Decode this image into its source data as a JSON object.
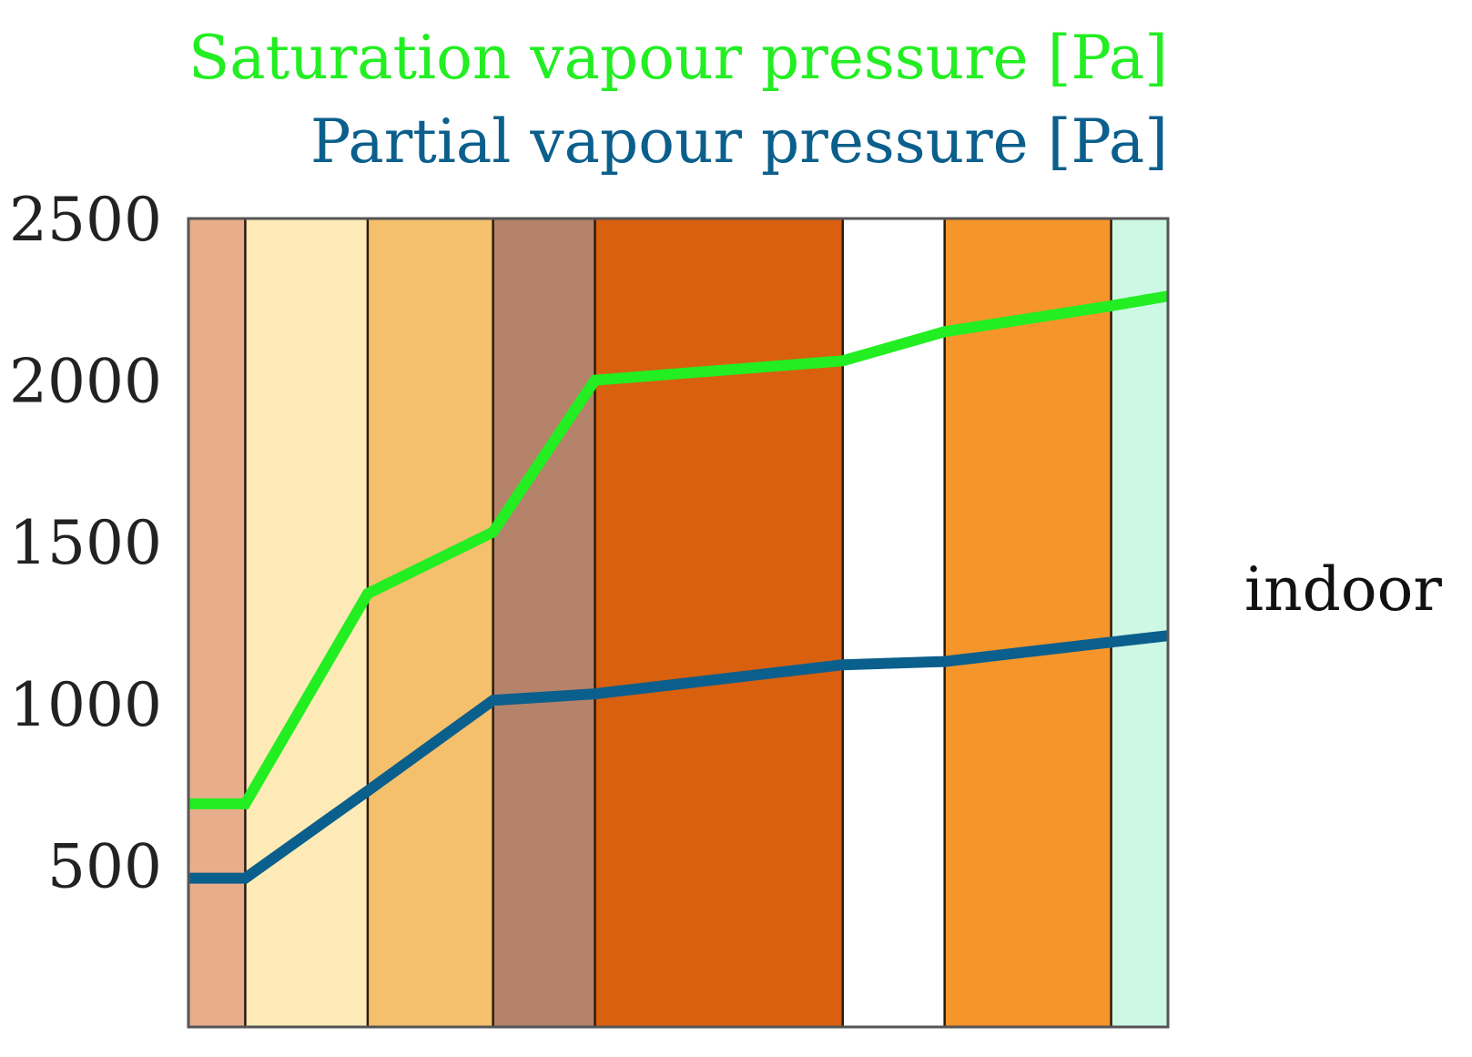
{
  "chart_data": {
    "type": "line",
    "title": "",
    "xlabel": "",
    "ylabel": "",
    "ylim": [
      0,
      2500
    ],
    "yticks": [
      500,
      1000,
      1500,
      2000,
      2500
    ],
    "grid": false,
    "side_label": "indoor",
    "layers": [
      {
        "start": 0.0,
        "end": 0.058,
        "color": "#e8ae8c"
      },
      {
        "start": 0.058,
        "end": 0.183,
        "color": "#fdeab6"
      },
      {
        "start": 0.183,
        "end": 0.311,
        "color": "#f4c06c"
      },
      {
        "start": 0.311,
        "end": 0.415,
        "color": "#b4836a"
      },
      {
        "start": 0.415,
        "end": 0.668,
        "color": "#d8600f"
      },
      {
        "start": 0.668,
        "end": 0.772,
        "color": "#ffffff"
      },
      {
        "start": 0.772,
        "end": 0.942,
        "color": "#f6952a"
      },
      {
        "start": 0.942,
        "end": 1.0,
        "color": "#cdf8e4"
      }
    ],
    "series": [
      {
        "name": "Saturation vapour pressure [Pa]",
        "color": "#22ee22",
        "x": [
          0.0,
          0.058,
          0.183,
          0.311,
          0.415,
          0.668,
          0.772,
          0.942,
          1.0
        ],
        "values": [
          690,
          690,
          1340,
          1530,
          2000,
          2060,
          2150,
          2230,
          2260
        ]
      },
      {
        "name": "Partial vapour pressure [Pa]",
        "color": "#0b5f8c",
        "x": [
          0.0,
          0.058,
          0.183,
          0.311,
          0.415,
          0.668,
          0.772,
          0.942,
          1.0
        ],
        "values": [
          460,
          460,
          730,
          1010,
          1030,
          1120,
          1130,
          1190,
          1210
        ]
      }
    ]
  }
}
